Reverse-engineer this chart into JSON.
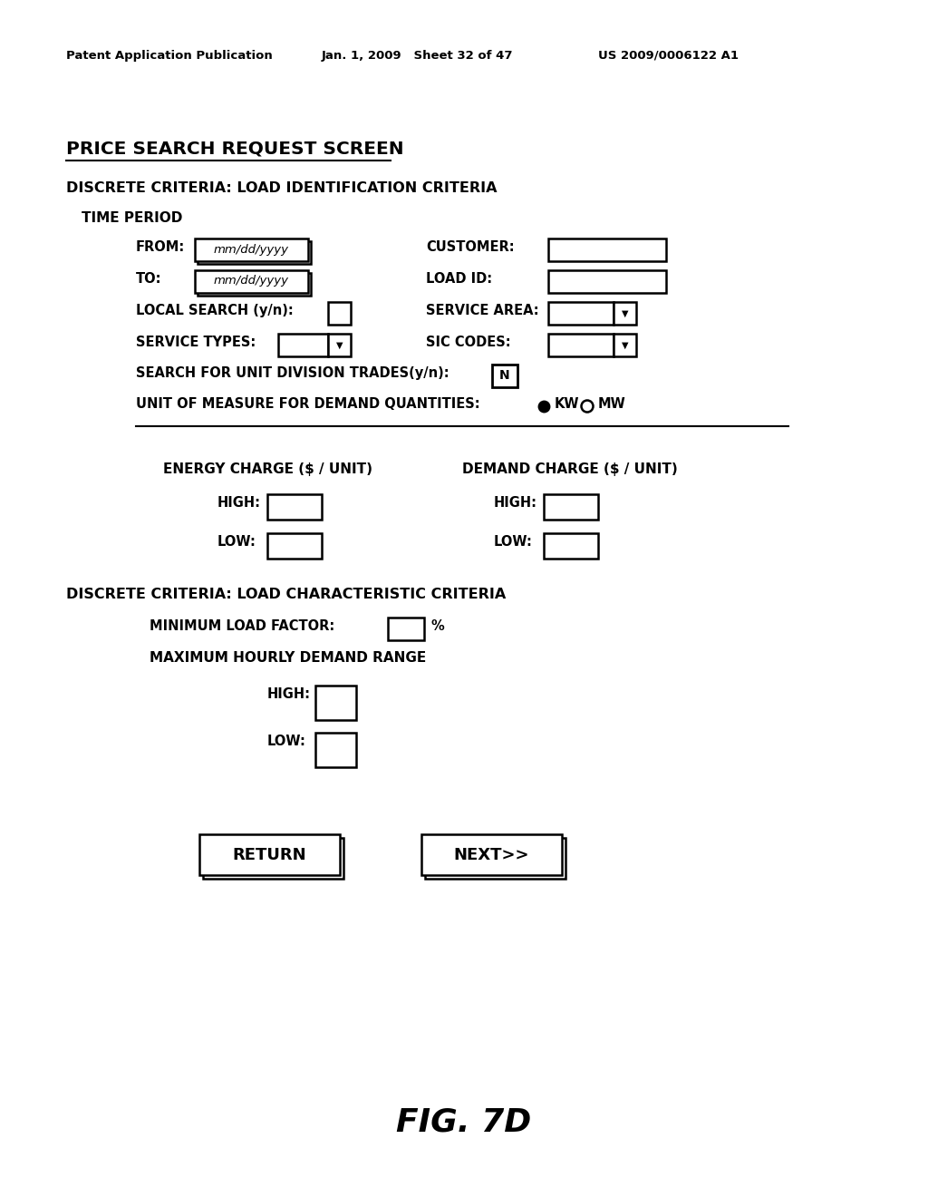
{
  "bg_color": "#ffffff",
  "header_left": "Patent Application Publication",
  "header_mid": "Jan. 1, 2009   Sheet 32 of 47",
  "header_right": "US 2009/0006122 A1",
  "title": "PRICE SEARCH REQUEST SCREEN",
  "section1": "DISCRETE CRITERIA: LOAD IDENTIFICATION CRITERIA",
  "time_period": "TIME PERIOD",
  "from_label": "FROM:",
  "from_value": "mm/dd/yyyy",
  "to_label": "TO:",
  "to_value": "mm/dd/yyyy",
  "customer_label": "CUSTOMER:",
  "load_id_label": "LOAD ID:",
  "local_search_label": "LOCAL SEARCH (y/n):",
  "service_area_label": "SERVICE AREA:",
  "service_types_label": "SERVICE TYPES:",
  "sic_codes_label": "SIC CODES:",
  "unit_division_label": "SEARCH FOR UNIT DIVISION TRADES(y/n):",
  "unit_division_value": "N",
  "unit_measure_label": "UNIT OF MEASURE FOR DEMAND QUANTITIES:",
  "kw_label": "KW",
  "mw_label": "MW",
  "energy_charge_label": "ENERGY CHARGE ($ / UNIT)",
  "demand_charge_label": "DEMAND CHARGE ($ / UNIT)",
  "high_label": "HIGH:",
  "low_label": "LOW:",
  "section2": "DISCRETE CRITERIA: LOAD CHARACTERISTIC CRITERIA",
  "min_load_factor_label": "MINIMUM LOAD FACTOR:",
  "percent_label": "%",
  "max_hourly_label": "MAXIMUM HOURLY DEMAND RANGE",
  "return_btn": "RETURN",
  "next_btn": "NEXT>>",
  "fig_label": "FIG. 7D"
}
